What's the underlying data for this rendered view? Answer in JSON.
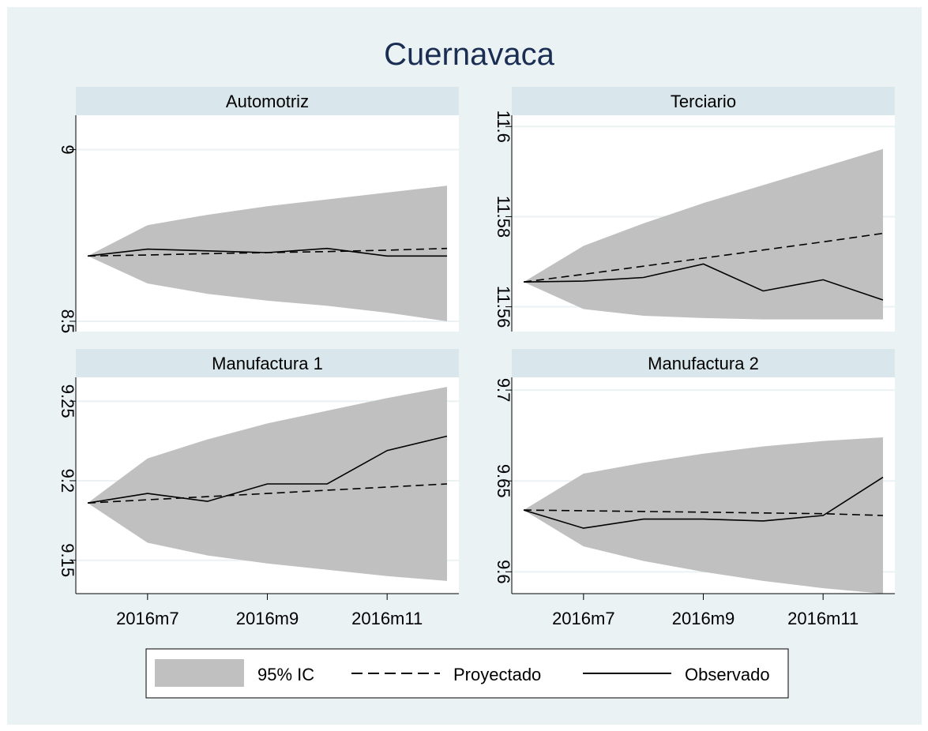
{
  "title": "Cuernavaca",
  "colors": {
    "outer_bg": "#ffffff",
    "plot_region_bg": "#eaf2f3",
    "strip_bg": "#d9e6eb",
    "title": "#1a2e53",
    "ci_fill": "#c0c0c0",
    "line": "#000000",
    "grid": "#eaf2f3"
  },
  "legend": {
    "items": [
      {
        "label": "95% IC",
        "style": "band"
      },
      {
        "label": "Proyectado",
        "style": "dashed"
      },
      {
        "label": "Observado",
        "style": "solid"
      }
    ]
  },
  "chart_data": [
    {
      "type": "line",
      "panel": "Automotriz",
      "x": [
        "2016m6",
        "2016m7",
        "2016m8",
        "2016m9",
        "2016m10",
        "2016m11",
        "2016m12"
      ],
      "x_ticks": [
        "2016m7",
        "2016m9",
        "2016m11"
      ],
      "yticks": [
        8.5,
        9
      ],
      "ytick_labels": [
        "8.5",
        "9"
      ],
      "ylim": [
        8.47,
        9.1
      ],
      "series": [
        {
          "name": "Observado",
          "values": [
            8.69,
            8.71,
            8.705,
            8.7,
            8.712,
            8.69,
            8.69
          ]
        },
        {
          "name": "Proyectado",
          "values": [
            8.69,
            8.693,
            8.697,
            8.7,
            8.703,
            8.707,
            8.712
          ]
        },
        {
          "name": "95% IC",
          "lower": [
            8.69,
            8.61,
            8.58,
            8.56,
            8.545,
            8.525,
            8.5
          ],
          "upper": [
            8.69,
            8.78,
            8.81,
            8.835,
            8.855,
            8.875,
            8.895
          ]
        }
      ]
    },
    {
      "type": "line",
      "panel": "Terciario",
      "x": [
        "2016m6",
        "2016m7",
        "2016m8",
        "2016m9",
        "2016m10",
        "2016m11",
        "2016m12"
      ],
      "x_ticks": [
        "2016m7",
        "2016m9",
        "2016m11"
      ],
      "yticks": [
        11.56,
        11.58,
        11.6
      ],
      "ytick_labels": [
        "11.56",
        "11.58",
        "11.6"
      ],
      "ylim": [
        11.5545,
        11.6025
      ],
      "series": [
        {
          "name": "Observado",
          "values": [
            11.5655,
            11.5657,
            11.5665,
            11.5695,
            11.5635,
            11.566,
            11.5615
          ]
        },
        {
          "name": "Proyectado",
          "values": [
            11.5655,
            11.5672,
            11.569,
            11.5708,
            11.5726,
            11.5744,
            11.5763
          ]
        },
        {
          "name": "95% IC",
          "lower": [
            11.5655,
            11.5595,
            11.558,
            11.5575,
            11.5572,
            11.5572,
            11.5572
          ],
          "upper": [
            11.5655,
            11.5735,
            11.5785,
            11.583,
            11.587,
            11.591,
            11.595
          ]
        }
      ]
    },
    {
      "type": "line",
      "panel": "Manufactura 1",
      "x": [
        "2016m6",
        "2016m7",
        "2016m8",
        "2016m9",
        "2016m10",
        "2016m11",
        "2016m12"
      ],
      "x_ticks": [
        "2016m7",
        "2016m9",
        "2016m11"
      ],
      "yticks": [
        9.15,
        9.2,
        9.25
      ],
      "ytick_labels": [
        "9.15",
        "9.2",
        "9.25"
      ],
      "ylim": [
        9.129,
        9.265
      ],
      "series": [
        {
          "name": "Observado",
          "values": [
            9.186,
            9.192,
            9.187,
            9.198,
            9.198,
            9.219,
            9.228
          ]
        },
        {
          "name": "Proyectado",
          "values": [
            9.186,
            9.188,
            9.19,
            9.192,
            9.194,
            9.196,
            9.198
          ]
        },
        {
          "name": "95% IC",
          "lower": [
            9.186,
            9.161,
            9.153,
            9.148,
            9.144,
            9.14,
            9.137
          ],
          "upper": [
            9.186,
            9.214,
            9.226,
            9.236,
            9.244,
            9.252,
            9.259
          ]
        }
      ]
    },
    {
      "type": "line",
      "panel": "Manufactura 2",
      "x": [
        "2016m6",
        "2016m7",
        "2016m8",
        "2016m9",
        "2016m10",
        "2016m11",
        "2016m12"
      ],
      "x_ticks": [
        "2016m7",
        "2016m9",
        "2016m11"
      ],
      "yticks": [
        9.6,
        9.65,
        9.7
      ],
      "ytick_labels": [
        "9.6",
        "9.65",
        "9.7"
      ],
      "ylim": [
        9.588,
        9.707
      ],
      "series": [
        {
          "name": "Observado",
          "values": [
            9.634,
            9.624,
            9.629,
            9.629,
            9.628,
            9.631,
            9.652
          ]
        },
        {
          "name": "Proyectado",
          "values": [
            9.634,
            9.6336,
            9.6332,
            9.6328,
            9.6324,
            9.632,
            9.631
          ]
        },
        {
          "name": "95% IC",
          "lower": [
            9.634,
            9.614,
            9.606,
            9.6,
            9.595,
            9.591,
            9.588
          ],
          "upper": [
            9.634,
            9.654,
            9.66,
            9.665,
            9.669,
            9.672,
            9.674
          ]
        }
      ]
    }
  ]
}
